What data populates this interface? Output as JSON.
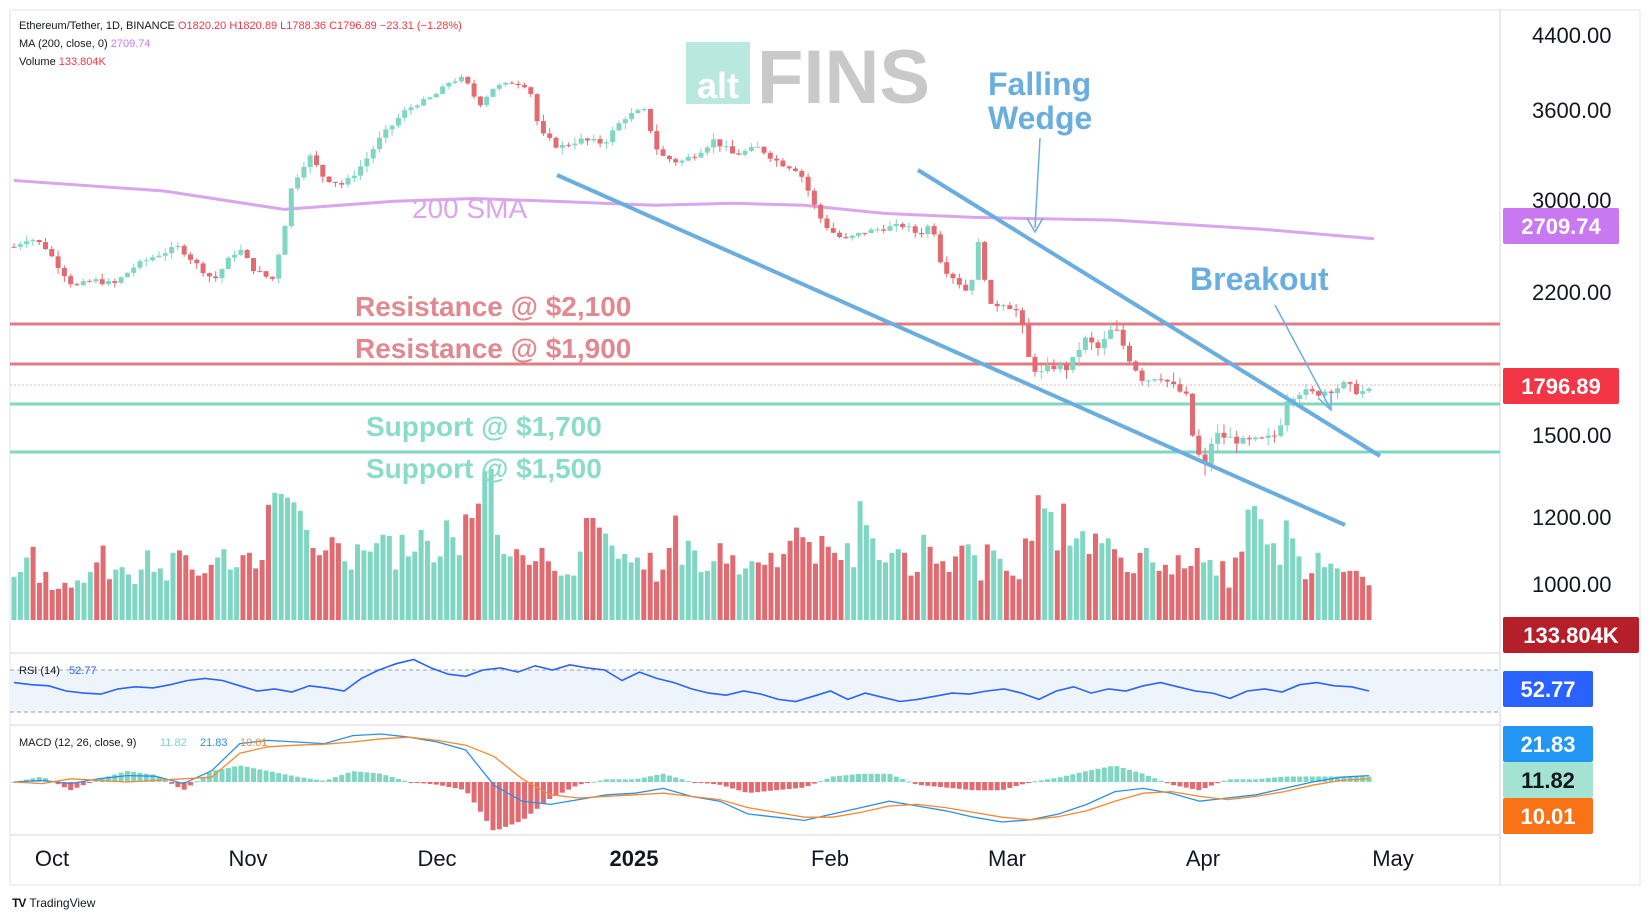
{
  "header": {
    "symbol_line": "Ethereum/Tether, 1D, BINANCE",
    "o": "O1820.20",
    "h": "H1820.89",
    "l": "L1788.36",
    "c": "C1796.89",
    "change": "−23.31 (−1.28%)",
    "ma_label": "MA (200, close, 0)",
    "ma_value": "2709.74",
    "volume_label": "Volume",
    "volume_value": "133.804K"
  },
  "watermark": {
    "small": "alt",
    "big": "FINS"
  },
  "branding": {
    "logo": "TV",
    "name": "TradingView"
  },
  "colors": {
    "up": "#7fd6c2",
    "down": "#e26b72",
    "sma": "#d9a6ee",
    "wedge": "#6aaee0",
    "resistance": "#e07d84",
    "support": "#7fd6c2"
  },
  "chart_data": [
    {
      "type": "candlestick",
      "title": "Ethereum/Tether, 1D, BINANCE",
      "y_axis_ticks": [
        "4400.00",
        "3600.00",
        "3000.00",
        "2200.00",
        "1500.00",
        "1200.00",
        "1000.00"
      ],
      "x_axis_ticks": [
        "Oct",
        "Nov",
        "Dec",
        "2025",
        "Feb",
        "Mar",
        "Apr",
        "May"
      ],
      "price_labels": {
        "sma": "2709.74",
        "last": "1796.89",
        "volume": "133.804K"
      },
      "sma_200": [
        [
          0,
          3130
        ],
        [
          150,
          3060
        ],
        [
          270,
          2930
        ],
        [
          380,
          2990
        ],
        [
          460,
          3010
        ],
        [
          540,
          2990
        ],
        [
          640,
          2960
        ],
        [
          720,
          2975
        ],
        [
          790,
          2960
        ],
        [
          870,
          2900
        ],
        [
          960,
          2870
        ],
        [
          1100,
          2850
        ],
        [
          1250,
          2780
        ],
        [
          1360,
          2710
        ]
      ],
      "close_path": [
        [
          0,
          2650
        ],
        [
          15,
          2720
        ],
        [
          30,
          2660
        ],
        [
          45,
          2500
        ],
        [
          60,
          2350
        ],
        [
          80,
          2400
        ],
        [
          100,
          2370
        ],
        [
          120,
          2500
        ],
        [
          140,
          2580
        ],
        [
          165,
          2650
        ],
        [
          185,
          2500
        ],
        [
          200,
          2400
        ],
        [
          215,
          2560
        ],
        [
          225,
          2640
        ],
        [
          240,
          2480
        ],
        [
          258,
          2400
        ],
        [
          268,
          2700
        ],
        [
          278,
          3100
        ],
        [
          295,
          3300
        ],
        [
          310,
          3150
        ],
        [
          330,
          3100
        ],
        [
          350,
          3250
        ],
        [
          365,
          3400
        ],
        [
          385,
          3550
        ],
        [
          400,
          3650
        ],
        [
          420,
          3750
        ],
        [
          435,
          3900
        ],
        [
          450,
          3950
        ],
        [
          465,
          3650
        ],
        [
          480,
          3850
        ],
        [
          500,
          3900
        ],
        [
          515,
          3850
        ],
        [
          525,
          3450
        ],
        [
          545,
          3350
        ],
        [
          565,
          3400
        ],
        [
          590,
          3380
        ],
        [
          610,
          3550
        ],
        [
          630,
          3600
        ],
        [
          645,
          3300
        ],
        [
          665,
          3250
        ],
        [
          680,
          3300
        ],
        [
          700,
          3400
        ],
        [
          720,
          3300
        ],
        [
          745,
          3350
        ],
        [
          765,
          3250
        ],
        [
          785,
          3200
        ],
        [
          795,
          3050
        ],
        [
          805,
          2880
        ],
        [
          815,
          2780
        ],
        [
          830,
          2700
        ],
        [
          850,
          2760
        ],
        [
          870,
          2790
        ],
        [
          890,
          2810
        ],
        [
          905,
          2740
        ],
        [
          918,
          2830
        ],
        [
          928,
          2500
        ],
        [
          940,
          2420
        ],
        [
          955,
          2300
        ],
        [
          965,
          2700
        ],
        [
          975,
          2200
        ],
        [
          990,
          2230
        ],
        [
          1005,
          2170
        ],
        [
          1015,
          1950
        ],
        [
          1025,
          1880
        ],
        [
          1040,
          1920
        ],
        [
          1055,
          1910
        ],
        [
          1070,
          2050
        ],
        [
          1085,
          2000
        ],
        [
          1100,
          2110
        ],
        [
          1115,
          1960
        ],
        [
          1130,
          1850
        ],
        [
          1145,
          1880
        ],
        [
          1160,
          1820
        ],
        [
          1172,
          1780
        ],
        [
          1180,
          1550
        ],
        [
          1190,
          1440
        ],
        [
          1200,
          1600
        ],
        [
          1215,
          1580
        ],
        [
          1230,
          1560
        ],
        [
          1250,
          1570
        ],
        [
          1265,
          1600
        ],
        [
          1270,
          1760
        ],
        [
          1285,
          1800
        ],
        [
          1300,
          1790
        ],
        [
          1315,
          1810
        ],
        [
          1330,
          1830
        ],
        [
          1345,
          1800
        ],
        [
          1355,
          1797
        ]
      ],
      "volume_bars": [
        36,
        40,
        52,
        61,
        31,
        40,
        25,
        26,
        31,
        27,
        33,
        31,
        40,
        48,
        62,
        34,
        42,
        44,
        38,
        30,
        42,
        58,
        40,
        43,
        33,
        56,
        58,
        54,
        42,
        37,
        39,
        46,
        52,
        59,
        42,
        44,
        54,
        56,
        43,
        50,
        96,
        106,
        105,
        102,
        98,
        91,
        75,
        60,
        54,
        58,
        69,
        64,
        49,
        42,
        63,
        58,
        57,
        64,
        71,
        70,
        42,
        71,
        53,
        57,
        75,
        66,
        48,
        53,
        83,
        69,
        54,
        88,
        85,
        97,
        124,
        126,
        71,
        55,
        53,
        59,
        54,
        46,
        49,
        60,
        49,
        41,
        37,
        38,
        37,
        57,
        85,
        85,
        77,
        72,
        62,
        51,
        55,
        48,
        52,
        42,
        56,
        32,
        42,
        60,
        87,
        46,
        66,
        58,
        40,
        41,
        49,
        64,
        47,
        54,
        38,
        43,
        49,
        48,
        46,
        56,
        44,
        55,
        66,
        77,
        69,
        65,
        47,
        70,
        61,
        56,
        50,
        64,
        44,
        99,
        79,
        68,
        50,
        48,
        56,
        59,
        56,
        37,
        40,
        71,
        61,
        47,
        49,
        40,
        53,
        62,
        63,
        54,
        33,
        63,
        58,
        51,
        41,
        37,
        34,
        68,
        66,
        104,
        93,
        90,
        58,
        97,
        62,
        68,
        74,
        55,
        72,
        64,
        68,
        59,
        52,
        40,
        39,
        56,
        60,
        48,
        41,
        46,
        38,
        54,
        43,
        45,
        60,
        48,
        50,
        37,
        49,
        27,
        52,
        57,
        92,
        95,
        84,
        63,
        64,
        46,
        83,
        68,
        53,
        34,
        39,
        56,
        44,
        47,
        43,
        40,
        41,
        41,
        36,
        29
      ],
      "rsi": {
        "label": "RSI (14)",
        "value": "52.77",
        "series": [
          58,
          56,
          55,
          50,
          48,
          47,
          52,
          54,
          53,
          56,
          60,
          62,
          60,
          55,
          50,
          52,
          49,
          55,
          53,
          50,
          62,
          70,
          76,
          80,
          72,
          66,
          64,
          70,
          72,
          68,
          74,
          70,
          75,
          72,
          70,
          60,
          68,
          62,
          58,
          52,
          48,
          46,
          50,
          47,
          42,
          40,
          45,
          50,
          42,
          48,
          44,
          40,
          42,
          45,
          48,
          47,
          50,
          52,
          48,
          42,
          50,
          54,
          48,
          52,
          50,
          55,
          58,
          54,
          50,
          48,
          43,
          50,
          52,
          49,
          56,
          58,
          55,
          54,
          50
        ]
      },
      "macd": {
        "label": "MACD (12, 26, close, 9)",
        "histogram": "11.82",
        "macd": "21.83",
        "signal": "10.01",
        "macd_line": [
          0,
          5,
          -5,
          10,
          20,
          18,
          -5,
          35,
          120,
          130,
          125,
          120,
          145,
          150,
          140,
          125,
          100,
          -10,
          -60,
          -70,
          -55,
          -40,
          -35,
          -20,
          -45,
          -60,
          -100,
          -110,
          -120,
          -100,
          -80,
          -60,
          -75,
          -90,
          -110,
          -125,
          -118,
          -100,
          -70,
          -30,
          -20,
          -35,
          -60,
          -50,
          -40,
          -20,
          0,
          15,
          20
        ],
        "signal_line": [
          0,
          -5,
          10,
          5,
          0,
          5,
          10,
          15,
          90,
          110,
          115,
          118,
          125,
          135,
          140,
          130,
          115,
          80,
          10,
          -40,
          -50,
          -45,
          -40,
          -35,
          -45,
          -55,
          -80,
          -95,
          -110,
          -110,
          -95,
          -75,
          -70,
          -80,
          -95,
          -110,
          -118,
          -108,
          -90,
          -60,
          -35,
          -30,
          -45,
          -55,
          -45,
          -30,
          -10,
          5,
          10
        ]
      }
    }
  ],
  "annotations": {
    "sma": "200 SMA",
    "res1": "Resistance @ $2,100",
    "res2": "Resistance @ $1,900",
    "sup1": "Support @ $1,700",
    "sup2": "Support @ $1,500",
    "wedge1": "Falling",
    "wedge2": "Wedge",
    "breakout": "Breakout"
  }
}
